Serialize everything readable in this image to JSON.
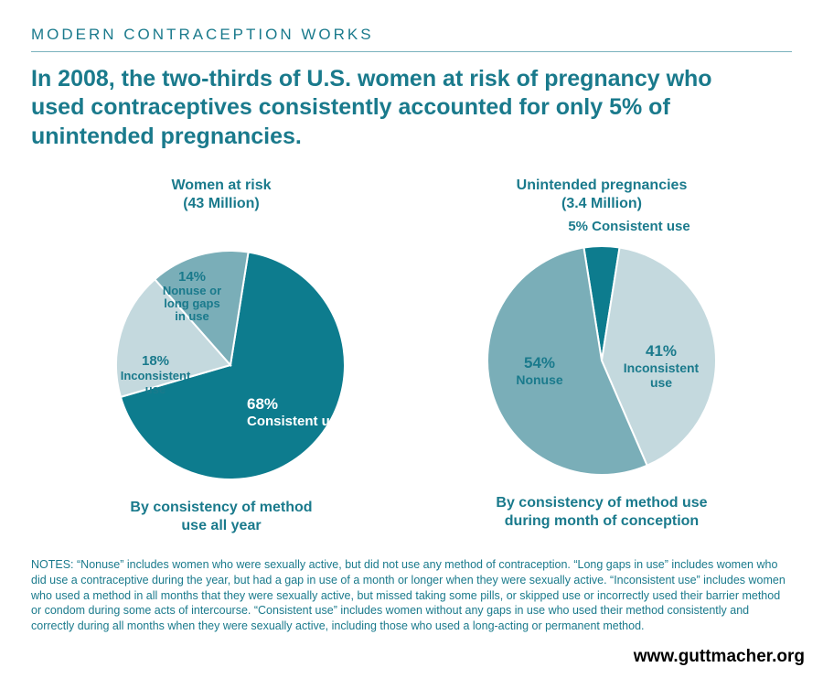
{
  "kicker": "MODERN CONTRACEPTION WORKS",
  "headline": "In 2008, the two-thirds of U.S. women at risk of pregnancy who used contraceptives consistently accounted for only 5% of unintended pregnancies.",
  "colors": {
    "teal_dark": "#0d7c8e",
    "teal_mid": "#7aaeb8",
    "teal_light": "#c4d9de",
    "text": "#1a7a8c",
    "white": "#ffffff"
  },
  "charts": {
    "left": {
      "title_l1": "Women at risk",
      "title_l2": "(43 Million)",
      "caption_l1": "By consistency of method",
      "caption_l2": "use all year",
      "type": "pie",
      "radius": 125,
      "slices": [
        {
          "key": "consistent",
          "value": 68,
          "color": "#0d7c8e",
          "pct": "68%",
          "label": "Consistent use"
        },
        {
          "key": "inconsistent",
          "value": 18,
          "color": "#c4d9de",
          "pct": "18%",
          "label_l1": "Inconsistent",
          "label_l2": "use"
        },
        {
          "key": "nonuse",
          "value": 14,
          "color": "#7aaeb8",
          "pct": "14%",
          "label_l1": "Nonuse or",
          "label_l2": "long gaps",
          "label_l3": "in use"
        }
      ]
    },
    "right": {
      "title_l1": "Unintended pregnancies",
      "title_l2": "(3.4 Million)",
      "caption_l1": "By consistency of method use",
      "caption_l2": "during month of conception",
      "top_label_pct": "5%",
      "top_label_txt": " Consistent use",
      "type": "pie",
      "radius": 125,
      "slices": [
        {
          "key": "consistent",
          "value": 5,
          "color": "#0d7c8e"
        },
        {
          "key": "inconsistent",
          "value": 41,
          "color": "#c4d9de",
          "pct": "41%",
          "label_l1": "Inconsistent",
          "label_l2": "use"
        },
        {
          "key": "nonuse",
          "value": 54,
          "color": "#7aaeb8",
          "pct": "54%",
          "label": "Nonuse"
        }
      ]
    }
  },
  "notes": "NOTES: “Nonuse” includes women who were sexually active, but did not use any method of contraception. “Long gaps in use” includes women who did use a contraceptive during the year, but had a gap in use of a month or longer when they were sexually active. “Inconsistent use” includes women who used a method in all months that they were sexually active, but  missed taking some pills, or skipped use or incorrectly used their barrier method or condom during some acts of intercourse. “Consistent use” includes women without any gaps in use who used their method consistently and correctly during all months when they were sexually active, including those who used a long-acting or permanent method.",
  "source": "www.guttmacher.org"
}
